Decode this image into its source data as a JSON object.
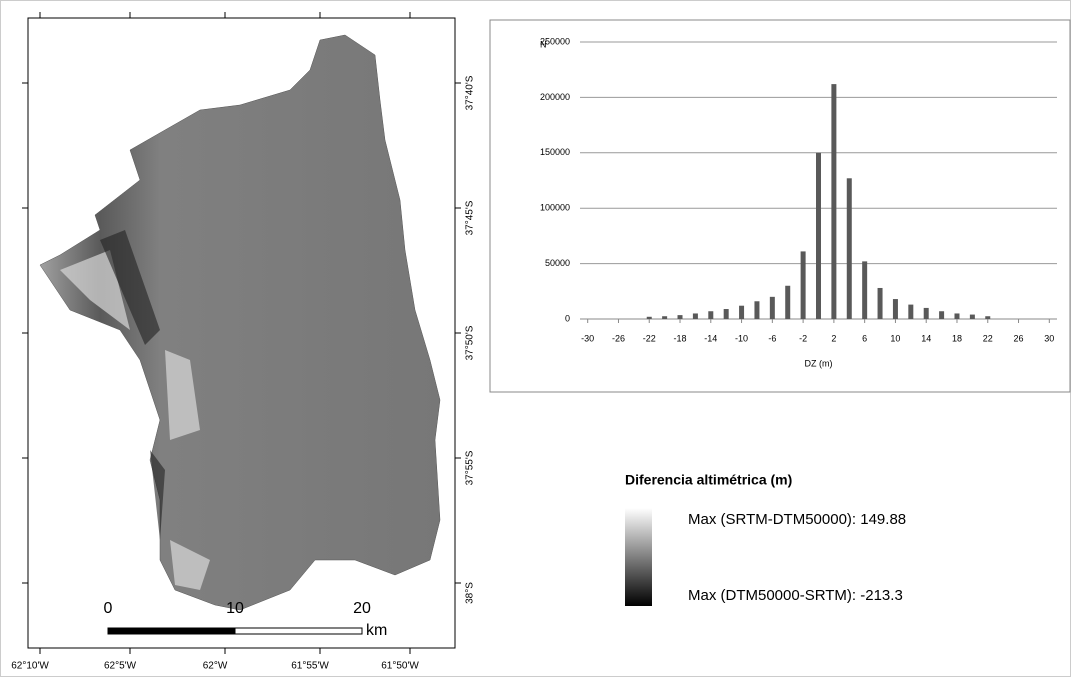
{
  "map": {
    "x_labels": [
      "62°10'W",
      "62°5'W",
      "62°W",
      "61°55'W",
      "61°50'W"
    ],
    "y_labels": [
      "37°40'S",
      "37°45'S",
      "37°50'S",
      "37°55'S",
      "38°S"
    ],
    "scale_labels": [
      "0",
      "10",
      "20"
    ],
    "scale_unit": "km"
  },
  "legend": {
    "title": "Diferencia altimétrica (m)",
    "max_label": "Max (SRTM-DTM50000): 149.88",
    "min_label": "Max (DTM50000-SRTM): -213.3"
  },
  "chart_data": {
    "type": "bar",
    "y_label": "N",
    "x_label": "DZ (m)",
    "color": "#595959",
    "x": [
      -22,
      -20,
      -18,
      -16,
      -14,
      -12,
      -10,
      -8,
      -6,
      -4,
      -2,
      0,
      2,
      4,
      6,
      8,
      10,
      12,
      14,
      16,
      18,
      20,
      22
    ],
    "values": [
      2000,
      2500,
      3500,
      5000,
      7000,
      9000,
      12000,
      16000,
      20000,
      30000,
      61000,
      150000,
      212000,
      127000,
      52000,
      28000,
      18000,
      13000,
      10000,
      7000,
      5000,
      4000,
      2500
    ],
    "xlim": [
      -31,
      31
    ],
    "xticks": [
      -30,
      -26,
      -22,
      -18,
      -14,
      -10,
      -6,
      -2,
      2,
      6,
      10,
      14,
      18,
      22,
      26,
      30
    ],
    "ylim": [
      0,
      250000
    ],
    "yticks": [
      0,
      50000,
      100000,
      150000,
      200000,
      250000
    ],
    "grid": true
  }
}
